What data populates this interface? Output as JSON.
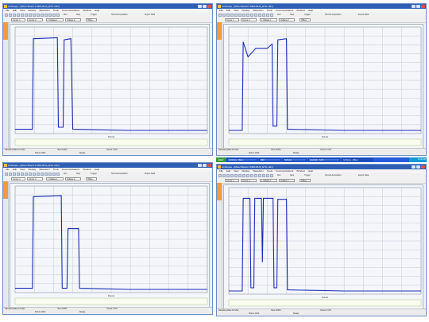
{
  "colors": {
    "trace": "#1a2db5",
    "grid": "#b8bfcc",
    "titlebar": "#2f5fb4",
    "accent": "#f59a3a"
  },
  "windows": [
    {
      "title": "AmScope - [Mixer Board 1 MIDI-BUS_ETH.mlbr]",
      "menu": [
        "File",
        "Edit",
        "View",
        "Display",
        "Waveform",
        "Tools",
        "Communications",
        "Window",
        "Help"
      ],
      "toolbar_labels": [
        "Run",
        "Stop",
        "Trigger",
        "Normal Acquisition",
        "Export Data"
      ],
      "fields": [
        "Cursor 1",
        "Cursor 2",
        "1 Voltage 1",
        "Voltage 2",
        "HiRes"
      ],
      "axis_label": "Points",
      "status": [
        "Sampling Rate 10 kS/s",
        "Points 1000",
        "View 100%",
        "Ready",
        "Cursor 0 Off"
      ],
      "chart_data": {
        "type": "line",
        "series": [
          {
            "values": [
              [
                0,
                0.04
              ],
              [
                0.04,
                0.04
              ],
              [
                0.09,
                0.04
              ],
              [
                0.095,
                0.89
              ],
              [
                0.22,
                0.9
              ],
              [
                0.225,
                0.06
              ],
              [
                0.25,
                0.06
              ],
              [
                0.255,
                0.88
              ],
              [
                0.29,
                0.89
              ],
              [
                0.3,
                0.04
              ],
              [
                0.6,
                0.03
              ],
              [
                1.0,
                0.03
              ]
            ]
          }
        ]
      }
    },
    {
      "title": "AmScope - [Mixer Board 2 MIDI-BUS_ETH.mlbr]",
      "menu": [
        "File",
        "Edit",
        "View",
        "Display",
        "Waveform",
        "Tools",
        "Communications",
        "Window",
        "Help"
      ],
      "toolbar_labels": [
        "Run",
        "Stop",
        "Trigger",
        "Normal Acquisition",
        "Export Data"
      ],
      "fields": [
        "Cursor 1",
        "Cursor 2",
        "1 Voltage 1",
        "Voltage 2",
        "HiRes"
      ],
      "axis_label": "Points",
      "status": [
        "Sampling Rate 10 kS/s",
        "Points 1000",
        "View 100%",
        "Ready",
        "Cursor 0 Off"
      ],
      "chart_data": {
        "type": "line",
        "series": [
          {
            "values": [
              [
                0,
                0.03
              ],
              [
                0.07,
                0.03
              ],
              [
                0.075,
                0.86
              ],
              [
                0.1,
                0.72
              ],
              [
                0.14,
                0.8
              ],
              [
                0.2,
                0.8
              ],
              [
                0.225,
                0.84
              ],
              [
                0.23,
                0.07
              ],
              [
                0.25,
                0.07
              ],
              [
                0.255,
                0.88
              ],
              [
                0.3,
                0.89
              ],
              [
                0.305,
                0.04
              ],
              [
                0.6,
                0.03
              ],
              [
                1.0,
                0.03
              ]
            ]
          }
        ]
      }
    },
    {
      "title": "AmScope - [Mixer Board 3 MIDI-BUS_ETH.mlbr]",
      "menu": [
        "File",
        "Edit",
        "View",
        "Display",
        "Waveform",
        "Tools",
        "Communications",
        "Window",
        "Help"
      ],
      "toolbar_labels": [
        "Run",
        "Stop",
        "Trigger",
        "Normal Acquisition",
        "Export Data"
      ],
      "fields": [
        "Cursor 1",
        "Cursor 2",
        "1 Voltage 1",
        "Voltage 2",
        "HiRes"
      ],
      "axis_label": "Points",
      "status": [
        "Sampling Rate 10 kS/s",
        "Points 1000",
        "View 100%",
        "Ready",
        "Cursor 0 Off"
      ],
      "chart_data": {
        "type": "line",
        "series": [
          {
            "values": [
              [
                0,
                0.04
              ],
              [
                0.09,
                0.04
              ],
              [
                0.095,
                0.9
              ],
              [
                0.24,
                0.91
              ],
              [
                0.245,
                0.04
              ],
              [
                0.27,
                0.04
              ],
              [
                0.275,
                0.6
              ],
              [
                0.33,
                0.6
              ],
              [
                0.335,
                0.04
              ],
              [
                0.6,
                0.03
              ],
              [
                1.0,
                0.03
              ]
            ]
          }
        ]
      }
    },
    {
      "title": "AmScope - [Mixer Board 4 MIDI-BUS_ETH.mlbr]",
      "menu": [
        "File",
        "Edit",
        "View",
        "Display",
        "Waveform",
        "Tools",
        "Communications",
        "Window",
        "Help"
      ],
      "toolbar_labels": [
        "Run",
        "Stop",
        "Trigger",
        "Normal Acquisition",
        "Export Data"
      ],
      "fields": [
        "Cursor 1",
        "Cursor 2",
        "1 Voltage 1",
        "Voltage 2",
        "HiRes"
      ],
      "axis_label": "Points",
      "status": [
        "Sampling Rate 10 kS/s",
        "Points 1000",
        "View 100%",
        "Ready",
        "Cursor 0 Off"
      ],
      "chart_data": {
        "type": "line",
        "series": [
          {
            "values": [
              [
                0,
                0.03
              ],
              [
                0.07,
                0.03
              ],
              [
                0.075,
                0.9
              ],
              [
                0.11,
                0.9
              ],
              [
                0.115,
                0.06
              ],
              [
                0.13,
                0.06
              ],
              [
                0.135,
                0.9
              ],
              [
                0.17,
                0.9
              ],
              [
                0.175,
                0.3
              ],
              [
                0.18,
                0.9
              ],
              [
                0.23,
                0.9
              ],
              [
                0.235,
                0.06
              ],
              [
                0.25,
                0.06
              ],
              [
                0.255,
                0.89
              ],
              [
                0.3,
                0.89
              ],
              [
                0.305,
                0.04
              ],
              [
                0.6,
                0.03
              ],
              [
                1.0,
                0.03
              ]
            ]
          }
        ]
      }
    }
  ],
  "taskbar": {
    "start_label": "start",
    "tasks": [
      "AmScope - Mixer...",
      "MIDI",
      "Software",
      "wireshark - Sniffi...",
      "AmScope - [Mixer..."
    ],
    "clock": "10:42 AM"
  }
}
